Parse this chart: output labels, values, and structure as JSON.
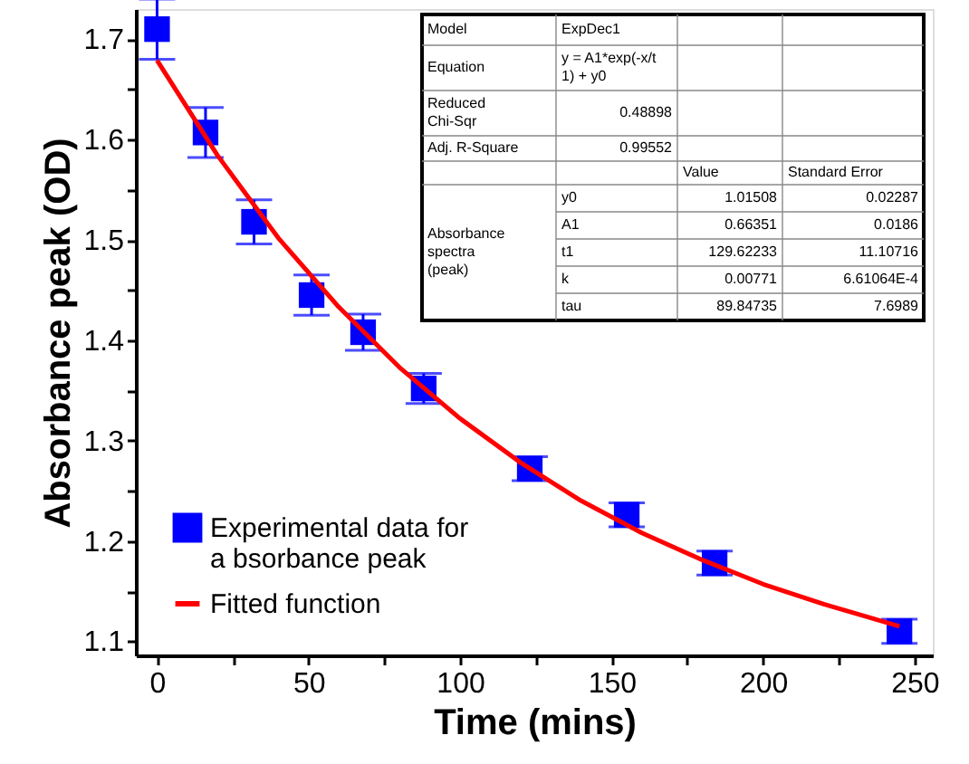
{
  "chart_data": {
    "type": "scatter",
    "xlabel": "Time (mins)",
    "ylabel": "Absorbance peak (OD)",
    "xlim": [
      -7,
      256
    ],
    "ylim": [
      1.086,
      1.73
    ],
    "xticks": [
      0,
      {
        "value": 25,
        "label": null
      },
      50,
      {
        "value": 75,
        "label": null
      },
      100,
      {
        "value": 125,
        "label": null
      },
      150,
      {
        "value": 175,
        "label": null
      },
      200,
      {
        "value": 225,
        "label": null
      },
      250
    ],
    "yticks": [
      1.1,
      {
        "value": 1.15,
        "label": null
      },
      1.2,
      {
        "value": 1.25,
        "label": null
      },
      1.3,
      {
        "value": 1.35,
        "label": null
      },
      1.4,
      {
        "value": 1.45,
        "label": null
      },
      1.5,
      {
        "value": 1.55,
        "label": null
      },
      1.6,
      {
        "value": 1.65,
        "label": null
      },
      1.7
    ],
    "x": [
      0,
      16,
      32,
      51,
      68,
      88,
      123,
      155,
      184,
      245
    ],
    "series": [
      {
        "name": "Experimental data for a bsorbance peak",
        "type": "scatter",
        "color": "#0000ff",
        "marker": "square",
        "values": [
          1.71,
          1.607,
          1.518,
          1.445,
          1.408,
          1.352,
          1.272,
          1.226,
          1.178,
          1.11
        ],
        "errors": [
          0.03,
          0.025,
          0.022,
          0.02,
          0.018,
          0.015,
          0.012,
          0.012,
          0.012,
          0.012
        ]
      },
      {
        "name": "Fitted function",
        "type": "line",
        "color": "#ff0000",
        "marker": "none",
        "line_style": "solid",
        "x": [
          0,
          20,
          40,
          60,
          80,
          100,
          120,
          140,
          160,
          180,
          200,
          220,
          245
        ],
        "values": [
          1.679,
          1.584,
          1.502,
          1.433,
          1.373,
          1.322,
          1.278,
          1.24,
          1.208,
          1.181,
          1.157,
          1.137,
          1.115
        ]
      }
    ],
    "legend": "bottom left",
    "grid": false,
    "annotations": [
      "Model",
      "ExpDec1",
      "Equation",
      "y = A1*exp(-x/t1) + y0",
      "Reduced Chi-Sqr",
      "0.48898",
      "Adj. R-Square",
      "0.99552",
      "Value",
      "Standard Error",
      "Absorbance spectra (peak)",
      "y0",
      "1.01508",
      "0.02287",
      "A1",
      "0.66351",
      "0.0186",
      "t1",
      "129.62233",
      "11.10716",
      "k",
      "0.00771",
      "6.61064E-4",
      "tau",
      "89.84735",
      "7.6989"
    ]
  }
}
